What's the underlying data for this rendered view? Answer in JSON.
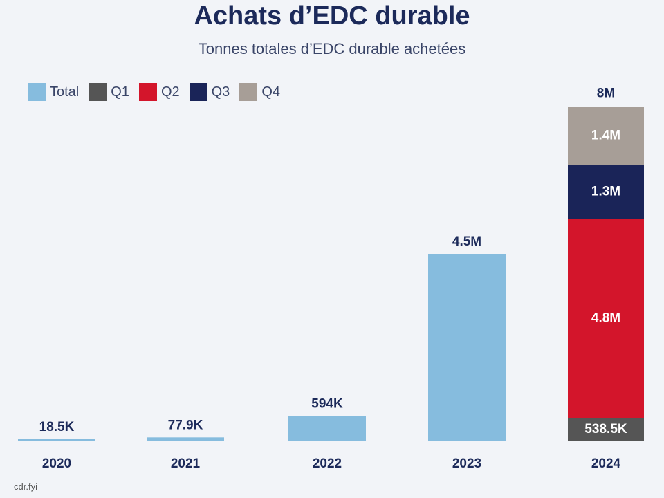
{
  "chart_data": {
    "type": "bar",
    "title": "Achats d’EDC durable",
    "subtitle": "Tonnes totales d’EDC durable achetées",
    "source": "cdr.fyi",
    "legend": [
      {
        "name": "Total",
        "color": "#86bcde"
      },
      {
        "name": "Q1",
        "color": "#555555"
      },
      {
        "name": "Q2",
        "color": "#d3152b"
      },
      {
        "name": "Q3",
        "color": "#1a2458"
      },
      {
        "name": "Q4",
        "color": "#a79e97"
      }
    ],
    "legend_position": "top-left",
    "categories": [
      "2020",
      "2021",
      "2022",
      "2023",
      "2024"
    ],
    "total_series": {
      "name": "Total",
      "color": "#86bcde",
      "values": [
        18500,
        77900,
        594000,
        4500000,
        null
      ],
      "labels": [
        "18.5K",
        "77.9K",
        "594K",
        "4.5M",
        null
      ]
    },
    "stacked_2024": {
      "category": "2024",
      "total_label": "8M",
      "segments": [
        {
          "name": "Q1",
          "value": 538500,
          "label": "538.5K",
          "color": "#555555"
        },
        {
          "name": "Q2",
          "value": 4800000,
          "label": "4.8M",
          "color": "#d3152b"
        },
        {
          "name": "Q3",
          "value": 1300000,
          "label": "1.3M",
          "color": "#1a2458"
        },
        {
          "name": "Q4",
          "value": 1400000,
          "label": "1.4M",
          "color": "#a79e97"
        }
      ]
    },
    "y_axis_visible": false,
    "grid": false
  }
}
